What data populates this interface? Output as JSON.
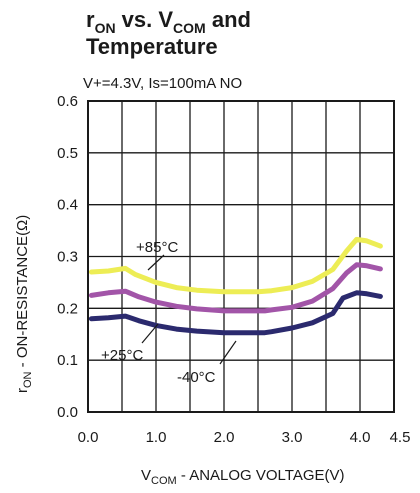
{
  "chart_data": {
    "type": "line",
    "title": {
      "line1_main_r": "r",
      "line1_sub_on": "ON",
      "line1_mid": " vs. V",
      "line1_sub_com": "COM",
      "line1_end": " and",
      "line2": "Temperature"
    },
    "subtitle": "V+=4.3V, Is=100mA NO",
    "ylabel": {
      "main_r": "r",
      "sub_on": "ON",
      "rest": " - ON-RESISTANCE(Ω)"
    },
    "xlabel": {
      "main_v": "V",
      "sub_com": "COM",
      "rest": " - ANALOG VOLTAGE(V)"
    },
    "xlim": [
      0,
      4.5
    ],
    "ylim": [
      0,
      0.6
    ],
    "xticks": [
      0,
      1,
      2,
      3,
      4,
      4.5
    ],
    "xtick_labels": [
      "0.0",
      "1.0",
      "2.0",
      "3.0",
      "4.0",
      "4.5"
    ],
    "yticks": [
      0,
      0.1,
      0.2,
      0.3,
      0.4,
      0.5,
      0.6
    ],
    "ytick_labels": [
      "0.0",
      "0.1",
      "0.2",
      "0.3",
      "0.4",
      "0.5",
      "0.6"
    ],
    "x_gridlines": [
      0.5,
      1,
      1.5,
      2,
      2.5,
      3,
      3.5,
      4
    ],
    "grid": true,
    "series": [
      {
        "name": "+85°C",
        "color": "#eded55",
        "points": [
          [
            0.05,
            0.27
          ],
          [
            0.3,
            0.272
          ],
          [
            0.55,
            0.277
          ],
          [
            0.7,
            0.265
          ],
          [
            1.0,
            0.25
          ],
          [
            1.3,
            0.24
          ],
          [
            1.6,
            0.235
          ],
          [
            2.0,
            0.232
          ],
          [
            2.5,
            0.232
          ],
          [
            2.7,
            0.234
          ],
          [
            3.0,
            0.24
          ],
          [
            3.3,
            0.252
          ],
          [
            3.6,
            0.275
          ],
          [
            3.8,
            0.31
          ],
          [
            3.95,
            0.333
          ],
          [
            4.1,
            0.33
          ],
          [
            4.3,
            0.32
          ]
        ]
      },
      {
        "name": "+25°C",
        "color": "#a255a8",
        "points": [
          [
            0.05,
            0.225
          ],
          [
            0.3,
            0.23
          ],
          [
            0.55,
            0.233
          ],
          [
            0.75,
            0.222
          ],
          [
            1.0,
            0.212
          ],
          [
            1.3,
            0.204
          ],
          [
            1.6,
            0.199
          ],
          [
            2.0,
            0.195
          ],
          [
            2.6,
            0.195
          ],
          [
            2.7,
            0.197
          ],
          [
            3.0,
            0.202
          ],
          [
            3.3,
            0.214
          ],
          [
            3.6,
            0.238
          ],
          [
            3.8,
            0.268
          ],
          [
            3.95,
            0.284
          ],
          [
            4.1,
            0.282
          ],
          [
            4.3,
            0.276
          ]
        ]
      },
      {
        "name": "-40°C",
        "color": "#2b2a6e",
        "points": [
          [
            0.05,
            0.18
          ],
          [
            0.3,
            0.182
          ],
          [
            0.55,
            0.185
          ],
          [
            0.75,
            0.176
          ],
          [
            1.0,
            0.167
          ],
          [
            1.3,
            0.16
          ],
          [
            1.6,
            0.156
          ],
          [
            2.0,
            0.153
          ],
          [
            2.6,
            0.153
          ],
          [
            2.7,
            0.155
          ],
          [
            3.0,
            0.162
          ],
          [
            3.3,
            0.172
          ],
          [
            3.6,
            0.19
          ],
          [
            3.75,
            0.22
          ],
          [
            3.95,
            0.23
          ],
          [
            4.1,
            0.228
          ],
          [
            4.3,
            0.223
          ]
        ]
      }
    ],
    "annotations": [
      {
        "text": "+85°C",
        "series": "+85°C"
      },
      {
        "text": "+25°C",
        "series": "+25°C"
      },
      {
        "text": "-40°C",
        "series": "-40°C"
      }
    ]
  }
}
